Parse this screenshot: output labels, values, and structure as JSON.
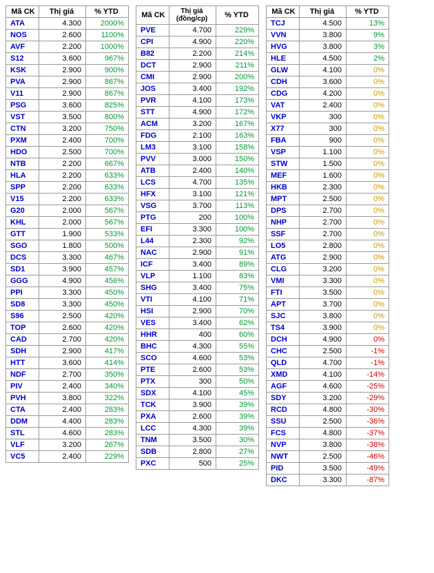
{
  "headers": {
    "code": "Mã CK",
    "price": "Thị giá",
    "price2_line1": "Thị giá",
    "price2_line2": "(đồng/cp)",
    "ytd": "% YTD"
  },
  "colors": {
    "code": "#0000cc",
    "green": "#009933",
    "orange": "#cc9900",
    "red": "#cc0000",
    "black": "#000000",
    "border": "#999999"
  },
  "table1": [
    {
      "code": "ATA",
      "price": "4.300",
      "ytd": "2000%",
      "c": "green"
    },
    {
      "code": "NOS",
      "price": "2.600",
      "ytd": "1100%",
      "c": "green"
    },
    {
      "code": "AVF",
      "price": "2.200",
      "ytd": "1000%",
      "c": "green"
    },
    {
      "code": "S12",
      "price": "3.600",
      "ytd": "967%",
      "c": "green"
    },
    {
      "code": "KSK",
      "price": "2.900",
      "ytd": "900%",
      "c": "green"
    },
    {
      "code": "PVA",
      "price": "2.900",
      "ytd": "867%",
      "c": "green"
    },
    {
      "code": "V11",
      "price": "2.900",
      "ytd": "867%",
      "c": "green"
    },
    {
      "code": "PSG",
      "price": "3.600",
      "ytd": "825%",
      "c": "green"
    },
    {
      "code": "VST",
      "price": "3.500",
      "ytd": "800%",
      "c": "green"
    },
    {
      "code": "CTN",
      "price": "3.200",
      "ytd": "750%",
      "c": "green"
    },
    {
      "code": "PXM",
      "price": "2.400",
      "ytd": "700%",
      "c": "green"
    },
    {
      "code": "HDO",
      "price": "2.500",
      "ytd": "700%",
      "c": "green"
    },
    {
      "code": "NTB",
      "price": "2.200",
      "ytd": "667%",
      "c": "green"
    },
    {
      "code": "HLA",
      "price": "2.200",
      "ytd": "633%",
      "c": "green"
    },
    {
      "code": "SPP",
      "price": "2.200",
      "ytd": "633%",
      "c": "green"
    },
    {
      "code": "V15",
      "price": "2.200",
      "ytd": "633%",
      "c": "green"
    },
    {
      "code": "G20",
      "price": "2.000",
      "ytd": "567%",
      "c": "green"
    },
    {
      "code": "KHL",
      "price": "2.000",
      "ytd": "567%",
      "c": "green"
    },
    {
      "code": "GTT",
      "price": "1.900",
      "ytd": "533%",
      "c": "green"
    },
    {
      "code": "SGO",
      "price": "1.800",
      "ytd": "500%",
      "c": "green"
    },
    {
      "code": "DCS",
      "price": "3.300",
      "ytd": "467%",
      "c": "green"
    },
    {
      "code": "SD1",
      "price": "3.900",
      "ytd": "457%",
      "c": "green"
    },
    {
      "code": "GGG",
      "price": "4.900",
      "ytd": "456%",
      "c": "green"
    },
    {
      "code": "PPI",
      "price": "3.300",
      "ytd": "450%",
      "c": "green"
    },
    {
      "code": "SD8",
      "price": "3.300",
      "ytd": "450%",
      "c": "green"
    },
    {
      "code": "S96",
      "price": "2.500",
      "ytd": "420%",
      "c": "green"
    },
    {
      "code": "TOP",
      "price": "2.600",
      "ytd": "420%",
      "c": "green"
    },
    {
      "code": "CAD",
      "price": "2.700",
      "ytd": "420%",
      "c": "green"
    },
    {
      "code": "SDH",
      "price": "2.900",
      "ytd": "417%",
      "c": "green"
    },
    {
      "code": "HTT",
      "price": "3.600",
      "ytd": "414%",
      "c": "green"
    },
    {
      "code": "NDF",
      "price": "2.700",
      "ytd": "350%",
      "c": "green"
    },
    {
      "code": "PIV",
      "price": "2.400",
      "ytd": "340%",
      "c": "green"
    },
    {
      "code": "PVH",
      "price": "3.800",
      "ytd": "322%",
      "c": "green"
    },
    {
      "code": "CTA",
      "price": "2.400",
      "ytd": "283%",
      "c": "green"
    },
    {
      "code": "DDM",
      "price": "4.400",
      "ytd": "283%",
      "c": "green"
    },
    {
      "code": "STL",
      "price": "4.600",
      "ytd": "283%",
      "c": "green"
    },
    {
      "code": "VLF",
      "price": "3.200",
      "ytd": "267%",
      "c": "green"
    },
    {
      "code": "VC5",
      "price": "2.400",
      "ytd": "229%",
      "c": "green"
    }
  ],
  "table2": [
    {
      "code": "PVE",
      "price": "4.700",
      "ytd": "229%",
      "c": "green"
    },
    {
      "code": "CPI",
      "price": "4.900",
      "ytd": "220%",
      "c": "green"
    },
    {
      "code": "B82",
      "price": "2.200",
      "ytd": "214%",
      "c": "green"
    },
    {
      "code": "DCT",
      "price": "2.900",
      "ytd": "211%",
      "c": "green"
    },
    {
      "code": "CMI",
      "price": "2.900",
      "ytd": "200%",
      "c": "green"
    },
    {
      "code": "JOS",
      "price": "3.400",
      "ytd": "192%",
      "c": "green"
    },
    {
      "code": "PVR",
      "price": "4.100",
      "ytd": "173%",
      "c": "green"
    },
    {
      "code": "STT",
      "price": "4.900",
      "ytd": "172%",
      "c": "green"
    },
    {
      "code": "ACM",
      "price": "3.200",
      "ytd": "167%",
      "c": "green"
    },
    {
      "code": "FDG",
      "price": "2.100",
      "ytd": "163%",
      "c": "green"
    },
    {
      "code": "LM3",
      "price": "3.100",
      "ytd": "158%",
      "c": "green"
    },
    {
      "code": "PVV",
      "price": "3.000",
      "ytd": "150%",
      "c": "green"
    },
    {
      "code": "ATB",
      "price": "2.400",
      "ytd": "140%",
      "c": "green"
    },
    {
      "code": "LCS",
      "price": "4.700",
      "ytd": "135%",
      "c": "green"
    },
    {
      "code": "HFX",
      "price": "3.100",
      "ytd": "121%",
      "c": "green"
    },
    {
      "code": "VSG",
      "price": "3.700",
      "ytd": "113%",
      "c": "green"
    },
    {
      "code": "PTG",
      "price": "200",
      "ytd": "100%",
      "c": "green"
    },
    {
      "code": "EFI",
      "price": "3.300",
      "ytd": "100%",
      "c": "green"
    },
    {
      "code": "L44",
      "price": "2.300",
      "ytd": "92%",
      "c": "green"
    },
    {
      "code": "NAC",
      "price": "2.900",
      "ytd": "91%",
      "c": "green"
    },
    {
      "code": "ICF",
      "price": "3.400",
      "ytd": "89%",
      "c": "green"
    },
    {
      "code": "VLP",
      "price": "1.100",
      "ytd": "83%",
      "c": "green"
    },
    {
      "code": "SHG",
      "price": "3.400",
      "ytd": "75%",
      "c": "green"
    },
    {
      "code": "VTI",
      "price": "4.100",
      "ytd": "71%",
      "c": "green"
    },
    {
      "code": "HSI",
      "price": "2.900",
      "ytd": "70%",
      "c": "green"
    },
    {
      "code": "VES",
      "price": "3.400",
      "ytd": "62%",
      "c": "green"
    },
    {
      "code": "HHR",
      "price": "400",
      "ytd": "60%",
      "c": "green"
    },
    {
      "code": "BHC",
      "price": "4.300",
      "ytd": "55%",
      "c": "green"
    },
    {
      "code": "SCO",
      "price": "4.600",
      "ytd": "53%",
      "c": "green"
    },
    {
      "code": "PTE",
      "price": "2.600",
      "ytd": "53%",
      "c": "green"
    },
    {
      "code": "PTX",
      "price": "300",
      "ytd": "50%",
      "c": "green"
    },
    {
      "code": "SDX",
      "price": "4.100",
      "ytd": "45%",
      "c": "green"
    },
    {
      "code": "TCK",
      "price": "3.900",
      "ytd": "39%",
      "c": "green"
    },
    {
      "code": "PXA",
      "price": "2.600",
      "ytd": "39%",
      "c": "green"
    },
    {
      "code": "LCC",
      "price": "4.300",
      "ytd": "39%",
      "c": "green"
    },
    {
      "code": "TNM",
      "price": "3.500",
      "ytd": "30%",
      "c": "green"
    },
    {
      "code": "SDB",
      "price": "2.800",
      "ytd": "27%",
      "c": "green"
    },
    {
      "code": "PXC",
      "price": "500",
      "ytd": "25%",
      "c": "green"
    }
  ],
  "table3": [
    {
      "code": "TCJ",
      "price": "4.500",
      "ytd": "13%",
      "c": "green"
    },
    {
      "code": "VVN",
      "price": "3.800",
      "ytd": "9%",
      "c": "green"
    },
    {
      "code": "HVG",
      "price": "3.800",
      "ytd": "3%",
      "c": "green"
    },
    {
      "code": "HLE",
      "price": "4.500",
      "ytd": "2%",
      "c": "green"
    },
    {
      "code": "GLW",
      "price": "4.100",
      "ytd": "0%",
      "c": "orange"
    },
    {
      "code": "CDH",
      "price": "3.600",
      "ytd": "0%",
      "c": "orange"
    },
    {
      "code": "CDG",
      "price": "4.200",
      "ytd": "0%",
      "c": "orange"
    },
    {
      "code": "VAT",
      "price": "2.400",
      "ytd": "0%",
      "c": "orange"
    },
    {
      "code": "VKP",
      "price": "300",
      "ytd": "0%",
      "c": "orange"
    },
    {
      "code": "X77",
      "price": "300",
      "ytd": "0%",
      "c": "orange"
    },
    {
      "code": "FBA",
      "price": "900",
      "ytd": "0%",
      "c": "orange"
    },
    {
      "code": "VSP",
      "price": "1.100",
      "ytd": "0%",
      "c": "orange"
    },
    {
      "code": "STW",
      "price": "1.500",
      "ytd": "0%",
      "c": "orange"
    },
    {
      "code": "MEF",
      "price": "1.600",
      "ytd": "0%",
      "c": "orange"
    },
    {
      "code": "HKB",
      "price": "2.300",
      "ytd": "0%",
      "c": "orange"
    },
    {
      "code": "MPT",
      "price": "2.500",
      "ytd": "0%",
      "c": "orange"
    },
    {
      "code": "DPS",
      "price": "2.700",
      "ytd": "0%",
      "c": "orange"
    },
    {
      "code": "NHP",
      "price": "2.700",
      "ytd": "0%",
      "c": "orange"
    },
    {
      "code": "SSF",
      "price": "2.700",
      "ytd": "0%",
      "c": "orange"
    },
    {
      "code": "LO5",
      "price": "2.800",
      "ytd": "0%",
      "c": "orange"
    },
    {
      "code": "ATG",
      "price": "2.900",
      "ytd": "0%",
      "c": "orange"
    },
    {
      "code": "CLG",
      "price": "3.200",
      "ytd": "0%",
      "c": "orange"
    },
    {
      "code": "VMI",
      "price": "3.300",
      "ytd": "0%",
      "c": "orange"
    },
    {
      "code": "FTI",
      "price": "3.500",
      "ytd": "0%",
      "c": "orange"
    },
    {
      "code": "APT",
      "price": "3.700",
      "ytd": "0%",
      "c": "orange"
    },
    {
      "code": "SJC",
      "price": "3.800",
      "ytd": "0%",
      "c": "orange"
    },
    {
      "code": "TS4",
      "price": "3.900",
      "ytd": "0%",
      "c": "orange"
    },
    {
      "code": "DCH",
      "price": "4.900",
      "ytd": "0%",
      "c": "red"
    },
    {
      "code": "CHC",
      "price": "2.500",
      "ytd": "-1%",
      "c": "red"
    },
    {
      "code": "QLD",
      "price": "4.700",
      "ytd": "-1%",
      "c": "red"
    },
    {
      "code": "XMD",
      "price": "4.100",
      "ytd": "-14%",
      "c": "red"
    },
    {
      "code": "AGF",
      "price": "4.600",
      "ytd": "-25%",
      "c": "red"
    },
    {
      "code": "SDY",
      "price": "3.200",
      "ytd": "-29%",
      "c": "red"
    },
    {
      "code": "RCD",
      "price": "4.800",
      "ytd": "-30%",
      "c": "red"
    },
    {
      "code": "SSU",
      "price": "2.500",
      "ytd": "-36%",
      "c": "red"
    },
    {
      "code": "FCS",
      "price": "4.800",
      "ytd": "-37%",
      "c": "red"
    },
    {
      "code": "NVP",
      "price": "3.800",
      "ytd": "-38%",
      "c": "red"
    },
    {
      "code": "NWT",
      "price": "2.500",
      "ytd": "-46%",
      "c": "red"
    },
    {
      "code": "PID",
      "price": "3.500",
      "ytd": "-49%",
      "c": "red"
    },
    {
      "code": "DKC",
      "price": "3.300",
      "ytd": "-87%",
      "c": "red"
    }
  ]
}
